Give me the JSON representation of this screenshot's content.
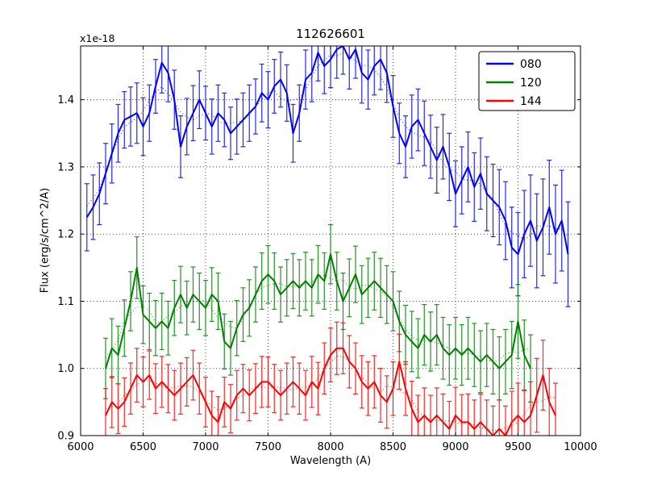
{
  "chart_data": {
    "type": "line",
    "title": "112626601",
    "xlabel": "Wavelength (A)",
    "ylabel": "Flux (erg/s/cm^2/A)",
    "y_offset_text": "x1e-18",
    "xlim": [
      6000,
      10000
    ],
    "ylim": [
      0.9,
      1.48
    ],
    "xticks": [
      6000,
      6500,
      7000,
      7500,
      8000,
      8500,
      9000,
      9500,
      10000
    ],
    "yticks": [
      0.9,
      1.0,
      1.1,
      1.2,
      1.3,
      1.4
    ],
    "grid": true,
    "grid_style": "dotted",
    "legend_position": "upper right",
    "error_bars": true,
    "series": [
      {
        "name": "080",
        "color": "#0000ff",
        "x": [
          6050,
          6100,
          6150,
          6200,
          6250,
          6300,
          6350,
          6400,
          6450,
          6500,
          6550,
          6600,
          6650,
          6700,
          6750,
          6800,
          6850,
          6900,
          6950,
          7000,
          7050,
          7100,
          7150,
          7200,
          7250,
          7300,
          7350,
          7400,
          7450,
          7500,
          7550,
          7600,
          7650,
          7700,
          7750,
          7800,
          7850,
          7900,
          7950,
          8000,
          8050,
          8100,
          8150,
          8200,
          8250,
          8300,
          8350,
          8400,
          8450,
          8500,
          8550,
          8600,
          8650,
          8700,
          8750,
          8800,
          8850,
          8900,
          8950,
          9000,
          9050,
          9100,
          9150,
          9200,
          9250,
          9300,
          9350,
          9400,
          9450,
          9500,
          9550,
          9600,
          9650,
          9700,
          9750,
          9800,
          9850,
          9900
        ],
        "y": [
          1.225,
          1.24,
          1.26,
          1.29,
          1.32,
          1.35,
          1.37,
          1.375,
          1.38,
          1.36,
          1.38,
          1.42,
          1.455,
          1.44,
          1.4,
          1.33,
          1.36,
          1.38,
          1.4,
          1.38,
          1.36,
          1.38,
          1.37,
          1.35,
          1.36,
          1.37,
          1.38,
          1.39,
          1.41,
          1.4,
          1.42,
          1.43,
          1.41,
          1.35,
          1.38,
          1.43,
          1.44,
          1.47,
          1.45,
          1.46,
          1.475,
          1.48,
          1.46,
          1.475,
          1.44,
          1.43,
          1.45,
          1.46,
          1.44,
          1.39,
          1.35,
          1.33,
          1.36,
          1.37,
          1.35,
          1.33,
          1.31,
          1.33,
          1.3,
          1.26,
          1.28,
          1.3,
          1.27,
          1.29,
          1.26,
          1.25,
          1.24,
          1.22,
          1.18,
          1.17,
          1.2,
          1.22,
          1.19,
          1.21,
          1.24,
          1.2,
          1.22,
          1.17
        ],
        "yerr": [
          0.05,
          0.048,
          0.046,
          0.045,
          0.044,
          0.043,
          0.042,
          0.044,
          0.045,
          0.043,
          0.042,
          0.04,
          0.045,
          0.043,
          0.044,
          0.046,
          0.042,
          0.041,
          0.043,
          0.04,
          0.041,
          0.042,
          0.04,
          0.039,
          0.041,
          0.04,
          0.042,
          0.041,
          0.043,
          0.042,
          0.04,
          0.041,
          0.042,
          0.043,
          0.042,
          0.044,
          0.043,
          0.042,
          0.041,
          0.042,
          0.043,
          0.042,
          0.044,
          0.043,
          0.045,
          0.044,
          0.043,
          0.045,
          0.044,
          0.046,
          0.045,
          0.046,
          0.047,
          0.046,
          0.048,
          0.047,
          0.049,
          0.048,
          0.05,
          0.049,
          0.05,
          0.052,
          0.051,
          0.053,
          0.055,
          0.054,
          0.056,
          0.058,
          0.06,
          0.062,
          0.065,
          0.068,
          0.07,
          0.072,
          0.07,
          0.073,
          0.075,
          0.078
        ]
      },
      {
        "name": "120",
        "color": "#008000",
        "x": [
          6200,
          6250,
          6300,
          6350,
          6400,
          6450,
          6500,
          6550,
          6600,
          6650,
          6700,
          6750,
          6800,
          6850,
          6900,
          6950,
          7000,
          7050,
          7100,
          7150,
          7200,
          7250,
          7300,
          7350,
          7400,
          7450,
          7500,
          7550,
          7600,
          7650,
          7700,
          7750,
          7800,
          7850,
          7900,
          7950,
          8000,
          8050,
          8100,
          8150,
          8200,
          8250,
          8300,
          8350,
          8400,
          8450,
          8500,
          8550,
          8600,
          8650,
          8700,
          8750,
          8800,
          8850,
          8900,
          8950,
          9000,
          9050,
          9100,
          9150,
          9200,
          9250,
          9300,
          9350,
          9400,
          9450,
          9500,
          9550,
          9600
        ],
        "y": [
          1.0,
          1.03,
          1.02,
          1.06,
          1.1,
          1.15,
          1.08,
          1.07,
          1.06,
          1.07,
          1.06,
          1.09,
          1.11,
          1.09,
          1.11,
          1.1,
          1.09,
          1.11,
          1.1,
          1.04,
          1.03,
          1.06,
          1.08,
          1.09,
          1.11,
          1.13,
          1.14,
          1.13,
          1.11,
          1.12,
          1.13,
          1.12,
          1.13,
          1.12,
          1.14,
          1.13,
          1.17,
          1.13,
          1.1,
          1.12,
          1.14,
          1.11,
          1.12,
          1.13,
          1.12,
          1.11,
          1.1,
          1.07,
          1.05,
          1.04,
          1.03,
          1.05,
          1.04,
          1.05,
          1.03,
          1.02,
          1.03,
          1.02,
          1.03,
          1.02,
          1.01,
          1.02,
          1.01,
          1.0,
          1.01,
          1.02,
          1.07,
          1.02,
          1.0
        ],
        "yerr": [
          0.045,
          0.044,
          0.043,
          0.042,
          0.044,
          0.046,
          0.043,
          0.042,
          0.041,
          0.042,
          0.04,
          0.041,
          0.042,
          0.04,
          0.041,
          0.042,
          0.041,
          0.04,
          0.042,
          0.041,
          0.04,
          0.041,
          0.04,
          0.042,
          0.041,
          0.042,
          0.043,
          0.042,
          0.041,
          0.042,
          0.041,
          0.042,
          0.043,
          0.042,
          0.043,
          0.042,
          0.044,
          0.043,
          0.042,
          0.043,
          0.042,
          0.043,
          0.044,
          0.043,
          0.044,
          0.043,
          0.044,
          0.045,
          0.044,
          0.045,
          0.044,
          0.045,
          0.044,
          0.045,
          0.046,
          0.045,
          0.046,
          0.045,
          0.046,
          0.047,
          0.046,
          0.047,
          0.048,
          0.047,
          0.048,
          0.05,
          0.055,
          0.052,
          0.05
        ]
      },
      {
        "name": "144",
        "color": "#ff0000",
        "x": [
          6200,
          6250,
          6300,
          6350,
          6400,
          6450,
          6500,
          6550,
          6600,
          6650,
          6700,
          6750,
          6800,
          6850,
          6900,
          6950,
          7000,
          7050,
          7100,
          7150,
          7200,
          7250,
          7300,
          7350,
          7400,
          7450,
          7500,
          7550,
          7600,
          7650,
          7700,
          7750,
          7800,
          7850,
          7900,
          7950,
          8000,
          8050,
          8100,
          8150,
          8200,
          8250,
          8300,
          8350,
          8400,
          8450,
          8500,
          8550,
          8600,
          8650,
          8700,
          8750,
          8800,
          8850,
          8900,
          8950,
          9000,
          9050,
          9100,
          9150,
          9200,
          9250,
          9300,
          9350,
          9400,
          9450,
          9500,
          9550,
          9600,
          9650,
          9700,
          9750,
          9800
        ],
        "y": [
          0.93,
          0.95,
          0.94,
          0.95,
          0.97,
          0.99,
          0.98,
          0.99,
          0.97,
          0.98,
          0.97,
          0.96,
          0.97,
          0.98,
          0.99,
          0.97,
          0.95,
          0.93,
          0.92,
          0.95,
          0.94,
          0.96,
          0.97,
          0.96,
          0.97,
          0.98,
          0.98,
          0.97,
          0.96,
          0.97,
          0.98,
          0.97,
          0.96,
          0.98,
          0.97,
          1.0,
          1.02,
          1.03,
          1.03,
          1.01,
          1.0,
          0.98,
          0.97,
          0.98,
          0.96,
          0.95,
          0.97,
          1.01,
          0.97,
          0.94,
          0.92,
          0.93,
          0.92,
          0.93,
          0.92,
          0.91,
          0.93,
          0.92,
          0.92,
          0.91,
          0.92,
          0.91,
          0.9,
          0.91,
          0.9,
          0.92,
          0.93,
          0.92,
          0.93,
          0.96,
          0.99,
          0.95,
          0.93
        ],
        "yerr": [
          0.04,
          0.038,
          0.037,
          0.036,
          0.038,
          0.04,
          0.037,
          0.036,
          0.037,
          0.038,
          0.036,
          0.037,
          0.038,
          0.036,
          0.037,
          0.038,
          0.037,
          0.036,
          0.038,
          0.037,
          0.036,
          0.037,
          0.036,
          0.038,
          0.037,
          0.038,
          0.037,
          0.036,
          0.037,
          0.038,
          0.037,
          0.038,
          0.037,
          0.038,
          0.039,
          0.038,
          0.04,
          0.039,
          0.038,
          0.039,
          0.038,
          0.039,
          0.04,
          0.039,
          0.04,
          0.039,
          0.04,
          0.041,
          0.04,
          0.041,
          0.04,
          0.041,
          0.04,
          0.041,
          0.042,
          0.041,
          0.042,
          0.041,
          0.042,
          0.043,
          0.042,
          0.043,
          0.044,
          0.043,
          0.044,
          0.046,
          0.048,
          0.047,
          0.05,
          0.055,
          0.052,
          0.05,
          0.048
        ]
      }
    ]
  }
}
